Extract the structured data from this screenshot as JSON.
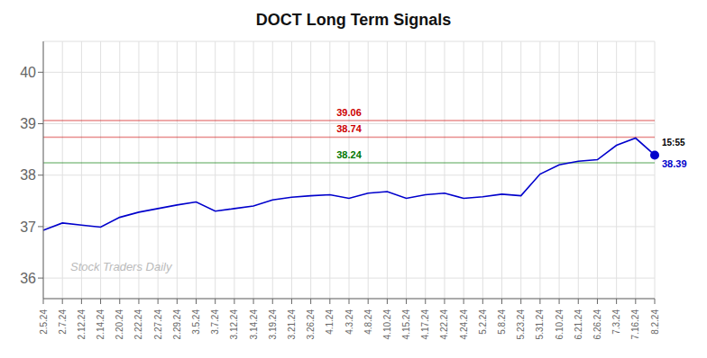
{
  "chart_data": {
    "type": "line",
    "title": "DOCT Long Term Signals",
    "categories": [
      "2.5.24",
      "2.7.24",
      "2.12.24",
      "2.14.24",
      "2.20.24",
      "2.22.24",
      "2.27.24",
      "2.29.24",
      "3.5.24",
      "3.7.24",
      "3.12.24",
      "3.14.24",
      "3.19.24",
      "3.21.24",
      "3.26.24",
      "4.1.24",
      "4.3.24",
      "4.8.24",
      "4.10.24",
      "4.15.24",
      "4.17.24",
      "4.22.24",
      "4.24.24",
      "5.2.24",
      "5.8.24",
      "5.23.24",
      "5.31.24",
      "6.10.24",
      "6.21.24",
      "6.26.24",
      "7.3.24",
      "7.16.24",
      "8.2.24"
    ],
    "values": [
      36.93,
      37.07,
      37.03,
      36.99,
      37.18,
      37.28,
      37.35,
      37.42,
      37.48,
      37.3,
      37.35,
      37.4,
      37.52,
      37.57,
      37.6,
      37.62,
      37.55,
      37.65,
      37.68,
      37.55,
      37.62,
      37.65,
      37.55,
      37.58,
      37.63,
      37.6,
      38.02,
      38.2,
      38.27,
      38.3,
      38.58,
      38.72,
      38.39
    ],
    "color": "#0000cc",
    "ylim": [
      35.6,
      40.6
    ],
    "yticks": [
      36,
      37,
      38,
      39,
      40
    ],
    "grid": true,
    "hlines": [
      {
        "value": 39.06,
        "label": "39.06",
        "color": "#cc0000"
      },
      {
        "value": 38.74,
        "label": "38.74",
        "color": "#cc0000"
      },
      {
        "value": 38.24,
        "label": "38.24",
        "color": "#007700"
      }
    ],
    "annotations": [
      "15:55",
      "38.39"
    ],
    "watermark": "Stock Traders Daily"
  }
}
